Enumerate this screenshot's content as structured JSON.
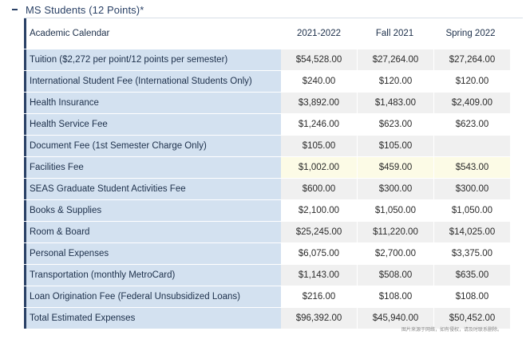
{
  "section": {
    "title": "MS Students (12 Points)*",
    "collapse_symbol": "–"
  },
  "table": {
    "columns": [
      "Academic Calendar",
      "2021-2022",
      "Fall 2021",
      "Spring 2022"
    ],
    "rows": [
      {
        "label": "Tuition ($2,272 per point/12 points per semester)",
        "values": [
          "$54,528.00",
          "$27,264.00",
          "$27,264.00"
        ]
      },
      {
        "label": "International Student Fee (International Students Only)",
        "values": [
          "$240.00",
          "$120.00",
          "$120.00"
        ]
      },
      {
        "label": "Health Insurance",
        "values": [
          "$3,892.00",
          "$1,483.00",
          "$2,409.00"
        ]
      },
      {
        "label": "Health Service Fee",
        "values": [
          "$1,246.00",
          "$623.00",
          "$623.00"
        ]
      },
      {
        "label": "Document Fee (1st Semester Charge Only)",
        "values": [
          "$105.00",
          "$105.00",
          ""
        ]
      },
      {
        "label": "Facilities Fee",
        "values": [
          "$1,002.00",
          "$459.00",
          "$543.00"
        ]
      },
      {
        "label": "SEAS Graduate Student Activities Fee",
        "values": [
          "$600.00",
          "$300.00",
          "$300.00"
        ]
      },
      {
        "label": "Books & Supplies",
        "values": [
          "$2,100.00",
          "$1,050.00",
          "$1,050.00"
        ]
      },
      {
        "label": "Room & Board",
        "values": [
          "$25,245.00",
          "$11,220.00",
          "$14,025.00"
        ]
      },
      {
        "label": "Personal Expenses",
        "values": [
          "$6,075.00",
          "$2,700.00",
          "$3,375.00"
        ]
      },
      {
        "label": "Transportation (monthly MetroCard)",
        "values": [
          "$1,143.00",
          "$508.00",
          "$635.00"
        ]
      },
      {
        "label": "Loan Origination Fee (Federal Unsubsidized Loans)",
        "values": [
          "$216.00",
          "$108.00",
          "$108.00"
        ]
      },
      {
        "label": "Total Estimated Expenses",
        "values": [
          "$96,392.00",
          "$45,940.00",
          "$50,452.00"
        ]
      }
    ]
  },
  "watermark": "图片来源于网络，如有侵权，请及时联系删除。",
  "colors": {
    "label_bg": "#d3e1f0",
    "accent_border": "#2a4166",
    "text": "#1c2f4a",
    "highlight_row": "#fcfbe6"
  }
}
